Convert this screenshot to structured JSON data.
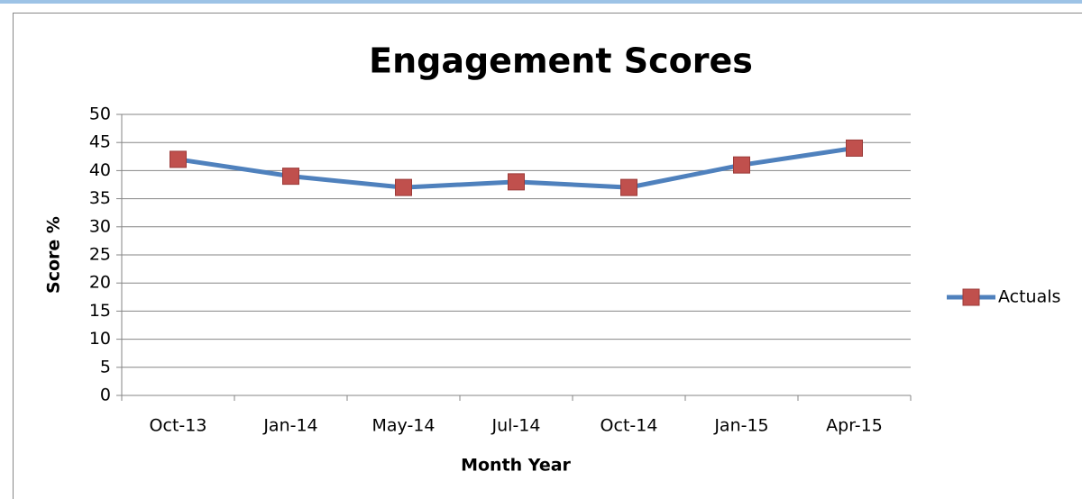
{
  "chart_data": {
    "type": "line",
    "title": "Engagement Scores",
    "x_label": "Month Year",
    "y_label": "Score %",
    "categories": [
      "Oct-13",
      "Jan-14",
      "May-14",
      "Jul-14",
      "Oct-14",
      "Jan-15",
      "Apr-15"
    ],
    "series": [
      {
        "name": "Actuals",
        "color": "#4f81bd",
        "marker_color": "#c0504d",
        "values": [
          42,
          39,
          37,
          38,
          37,
          41,
          44
        ]
      }
    ],
    "ylim": [
      0,
      50
    ],
    "yticks": [
      0,
      5,
      10,
      15,
      20,
      25,
      30,
      35,
      40,
      45,
      50
    ],
    "grid": true,
    "legend": "right"
  }
}
